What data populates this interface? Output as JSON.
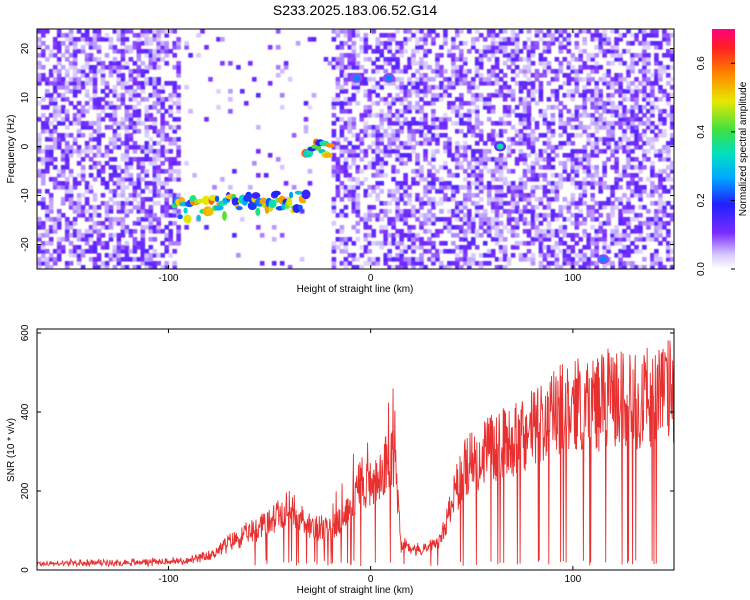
{
  "title": "S233.2025.183.06.52.G14",
  "colors": {
    "snr_line": "#e83030",
    "spectrogram_low": "#ffffff",
    "spectrogram_mid": "#7b2cff",
    "frame": "#000000"
  },
  "chart_data": [
    {
      "type": "heatmap",
      "name": "spectrogram",
      "xlabel": "Height of straight line (km)",
      "ylabel": "Frequency (Hz)",
      "xlim": [
        -165,
        150
      ],
      "ylim": [
        -25,
        24
      ],
      "xticks": [
        -100,
        0,
        100
      ],
      "xtick_labels": [
        "-100",
        "0",
        "100"
      ],
      "yticks": [
        -20,
        -10,
        0,
        10,
        20
      ],
      "ytick_labels": [
        "-20",
        "-10",
        "0",
        "10",
        "20"
      ],
      "colorbar": {
        "label": "Normalized spectral amplitude",
        "range": [
          0.0,
          0.7
        ],
        "ticks": [
          0.0,
          0.2,
          0.4,
          0.6
        ],
        "tick_labels": [
          "0.0",
          "0.2",
          "0.4",
          "0.6"
        ],
        "colormap": "rainbow (white→purple→blue→cyan→green→yellow→red→magenta)"
      },
      "gaps_km": [
        [
          -95,
          -20
        ]
      ],
      "features": [
        {
          "x_range": [
            -97,
            -32
          ],
          "freq_start": -13,
          "freq_end": -11,
          "amplitude": 0.6
        },
        {
          "x_range": [
            -32,
            -20
          ],
          "freq_start": 0,
          "freq_end": 0,
          "amplitude": 0.65
        },
        {
          "x": -7,
          "freq": 14,
          "amplitude": 0.25
        },
        {
          "x": 9,
          "freq": 14,
          "amplitude": 0.25
        },
        {
          "x": 64,
          "freq": 0,
          "amplitude": 0.35
        },
        {
          "x": 115,
          "freq": -23,
          "amplitude": 0.25
        }
      ]
    },
    {
      "type": "line",
      "name": "snr",
      "xlabel": "Height of straight line (km)",
      "ylabel": "SNR (10 * v/v)",
      "xlim": [
        -165,
        150
      ],
      "ylim": [
        0,
        610
      ],
      "xticks": [
        -100,
        0,
        100
      ],
      "xtick_labels": [
        "-100",
        "0",
        "100"
      ],
      "yticks": [
        0,
        200,
        400,
        600
      ],
      "ytick_labels": [
        "0",
        "200",
        "400",
        "600"
      ],
      "envelope": {
        "x": [
          -165,
          -120,
          -90,
          -80,
          -70,
          -60,
          -50,
          -40,
          -30,
          -20,
          -10,
          -5,
          0,
          5,
          12,
          15,
          25,
          35,
          40,
          45,
          50,
          60,
          70,
          80,
          90,
          100,
          110,
          120,
          130,
          140,
          150
        ],
        "y": [
          20,
          25,
          30,
          45,
          90,
          120,
          160,
          200,
          150,
          130,
          200,
          300,
          280,
          320,
          370,
          80,
          60,
          100,
          220,
          310,
          360,
          400,
          420,
          460,
          500,
          540,
          550,
          560,
          555,
          570,
          590
        ]
      }
    }
  ]
}
